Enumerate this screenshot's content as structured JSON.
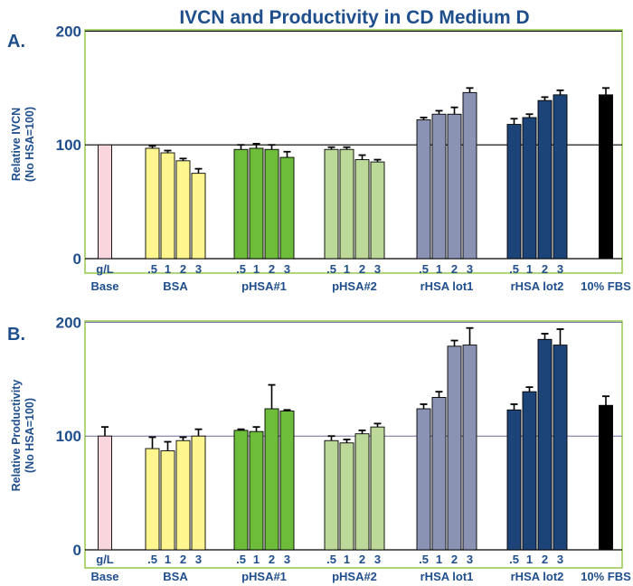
{
  "figure_title": "IVCN and Productivity in CD Medium D",
  "colors": {
    "title": "#1f4e8c",
    "text": "#1f4e8c",
    "frame": "#8dc63f",
    "error_bar": "#000000",
    "bar_outline": "#000000"
  },
  "group_colors": [
    "#f9d6de",
    "#fff68f",
    "#6dbd3b",
    "#bcd99a",
    "#8a93b3",
    "#1d4478",
    "#000000"
  ],
  "chart_data": [
    {
      "panel_label": "A.",
      "type": "bar",
      "ylabel_line1": "Relative IVCN",
      "ylabel_line2": "(No HSA=100)",
      "ylim": [
        0,
        200
      ],
      "yticks": [
        0,
        100,
        200
      ],
      "grid": "horizontal at 100 and 200",
      "groups": [
        {
          "name_line1": "g/L",
          "name_line2": "Base",
          "bar_labels": [
            ""
          ],
          "values": [
            100
          ],
          "errors": [
            0
          ]
        },
        {
          "name_line1": "",
          "name_line2": "BSA",
          "bar_labels": [
            ".5",
            "1",
            "2",
            "3"
          ],
          "values": [
            97,
            93,
            86,
            75
          ],
          "errors": [
            2,
            2,
            2,
            4
          ]
        },
        {
          "name_line1": "",
          "name_line2": "pHSA#1",
          "bar_labels": [
            ".5",
            "1",
            "2",
            "3"
          ],
          "values": [
            96,
            97,
            96,
            89
          ],
          "errors": [
            4,
            4,
            4,
            5
          ]
        },
        {
          "name_line1": "",
          "name_line2": "pHSA#2",
          "bar_labels": [
            ".5",
            "1",
            "2",
            "3"
          ],
          "values": [
            96,
            96,
            87,
            85
          ],
          "errors": [
            2,
            2,
            4,
            2
          ]
        },
        {
          "name_line1": "",
          "name_line2": "rHSA lot1",
          "bar_labels": [
            ".5",
            "1",
            "2",
            "3"
          ],
          "values": [
            122,
            127,
            127,
            146
          ],
          "errors": [
            2,
            3,
            6,
            4
          ]
        },
        {
          "name_line1": "",
          "name_line2": "rHSA lot2",
          "bar_labels": [
            ".5",
            "1",
            "2",
            "3"
          ],
          "values": [
            118,
            124,
            139,
            144
          ],
          "errors": [
            5,
            3,
            3,
            4
          ]
        },
        {
          "name_line1": "",
          "name_line2": "10% FBS",
          "bar_labels": [
            ""
          ],
          "values": [
            144
          ],
          "errors": [
            6
          ]
        }
      ]
    },
    {
      "panel_label": "B.",
      "type": "bar",
      "ylabel_line1": "Relative Productivity",
      "ylabel_line2": "(No HSA=100)",
      "ylim": [
        0,
        200
      ],
      "yticks": [
        0,
        100,
        200
      ],
      "grid": "horizontal at 100 and 200",
      "groups": [
        {
          "name_line1": "g/L",
          "name_line2": "Base",
          "bar_labels": [
            ""
          ],
          "values": [
            100
          ],
          "errors": [
            8
          ]
        },
        {
          "name_line1": "",
          "name_line2": "BSA",
          "bar_labels": [
            ".5",
            "1",
            "2",
            "3"
          ],
          "values": [
            89,
            87,
            96,
            100
          ],
          "errors": [
            10,
            8,
            3,
            6
          ]
        },
        {
          "name_line1": "",
          "name_line2": "pHSA#1",
          "bar_labels": [
            ".5",
            "1",
            "2",
            "3"
          ],
          "values": [
            105,
            104,
            124,
            122
          ],
          "errors": [
            1,
            4,
            21,
            1
          ]
        },
        {
          "name_line1": "",
          "name_line2": "pHSA#2",
          "bar_labels": [
            ".5",
            "1",
            "2",
            "3"
          ],
          "values": [
            96,
            94,
            102,
            108
          ],
          "errors": [
            4,
            3,
            3,
            3
          ]
        },
        {
          "name_line1": "",
          "name_line2": "rHSA lot1",
          "bar_labels": [
            ".5",
            "1",
            "2",
            "3"
          ],
          "values": [
            124,
            134,
            179,
            180
          ],
          "errors": [
            4,
            5,
            5,
            15
          ]
        },
        {
          "name_line1": "",
          "name_line2": "rHSA lot2",
          "bar_labels": [
            ".5",
            "1",
            "2",
            "3"
          ],
          "values": [
            123,
            139,
            185,
            180
          ],
          "errors": [
            5,
            4,
            5,
            14
          ]
        },
        {
          "name_line1": "",
          "name_line2": "10% FBS",
          "bar_labels": [
            ""
          ],
          "values": [
            127
          ],
          "errors": [
            8
          ]
        }
      ]
    }
  ]
}
